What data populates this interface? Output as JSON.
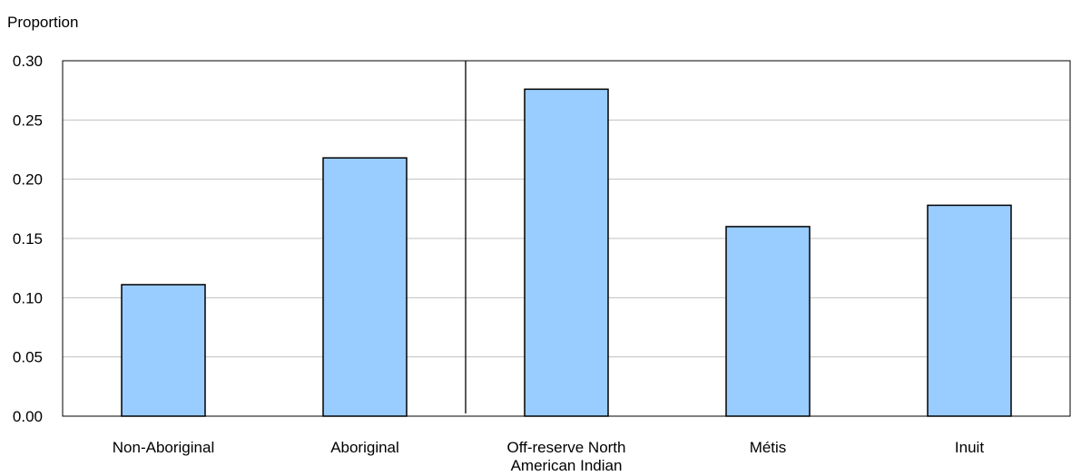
{
  "chart_data": {
    "type": "bar",
    "ylabel": "Proportion",
    "ylim": [
      0,
      0.3
    ],
    "yticks": [
      "0.00",
      "0.05",
      "0.10",
      "0.15",
      "0.20",
      "0.25",
      "0.30"
    ],
    "categories": [
      [
        "Non-Aboriginal"
      ],
      [
        "Aboriginal"
      ],
      [
        "Off-reserve North",
        "American Indian"
      ],
      [
        "Métis"
      ],
      [
        "Inuit"
      ]
    ],
    "values": [
      0.111,
      0.218,
      0.276,
      0.16,
      0.178
    ],
    "separator_after_category": 2,
    "grid": true,
    "colors": {
      "bar_fill": "#99ccff",
      "bar_stroke": "#000000",
      "grid": "#c0c0c0"
    }
  }
}
